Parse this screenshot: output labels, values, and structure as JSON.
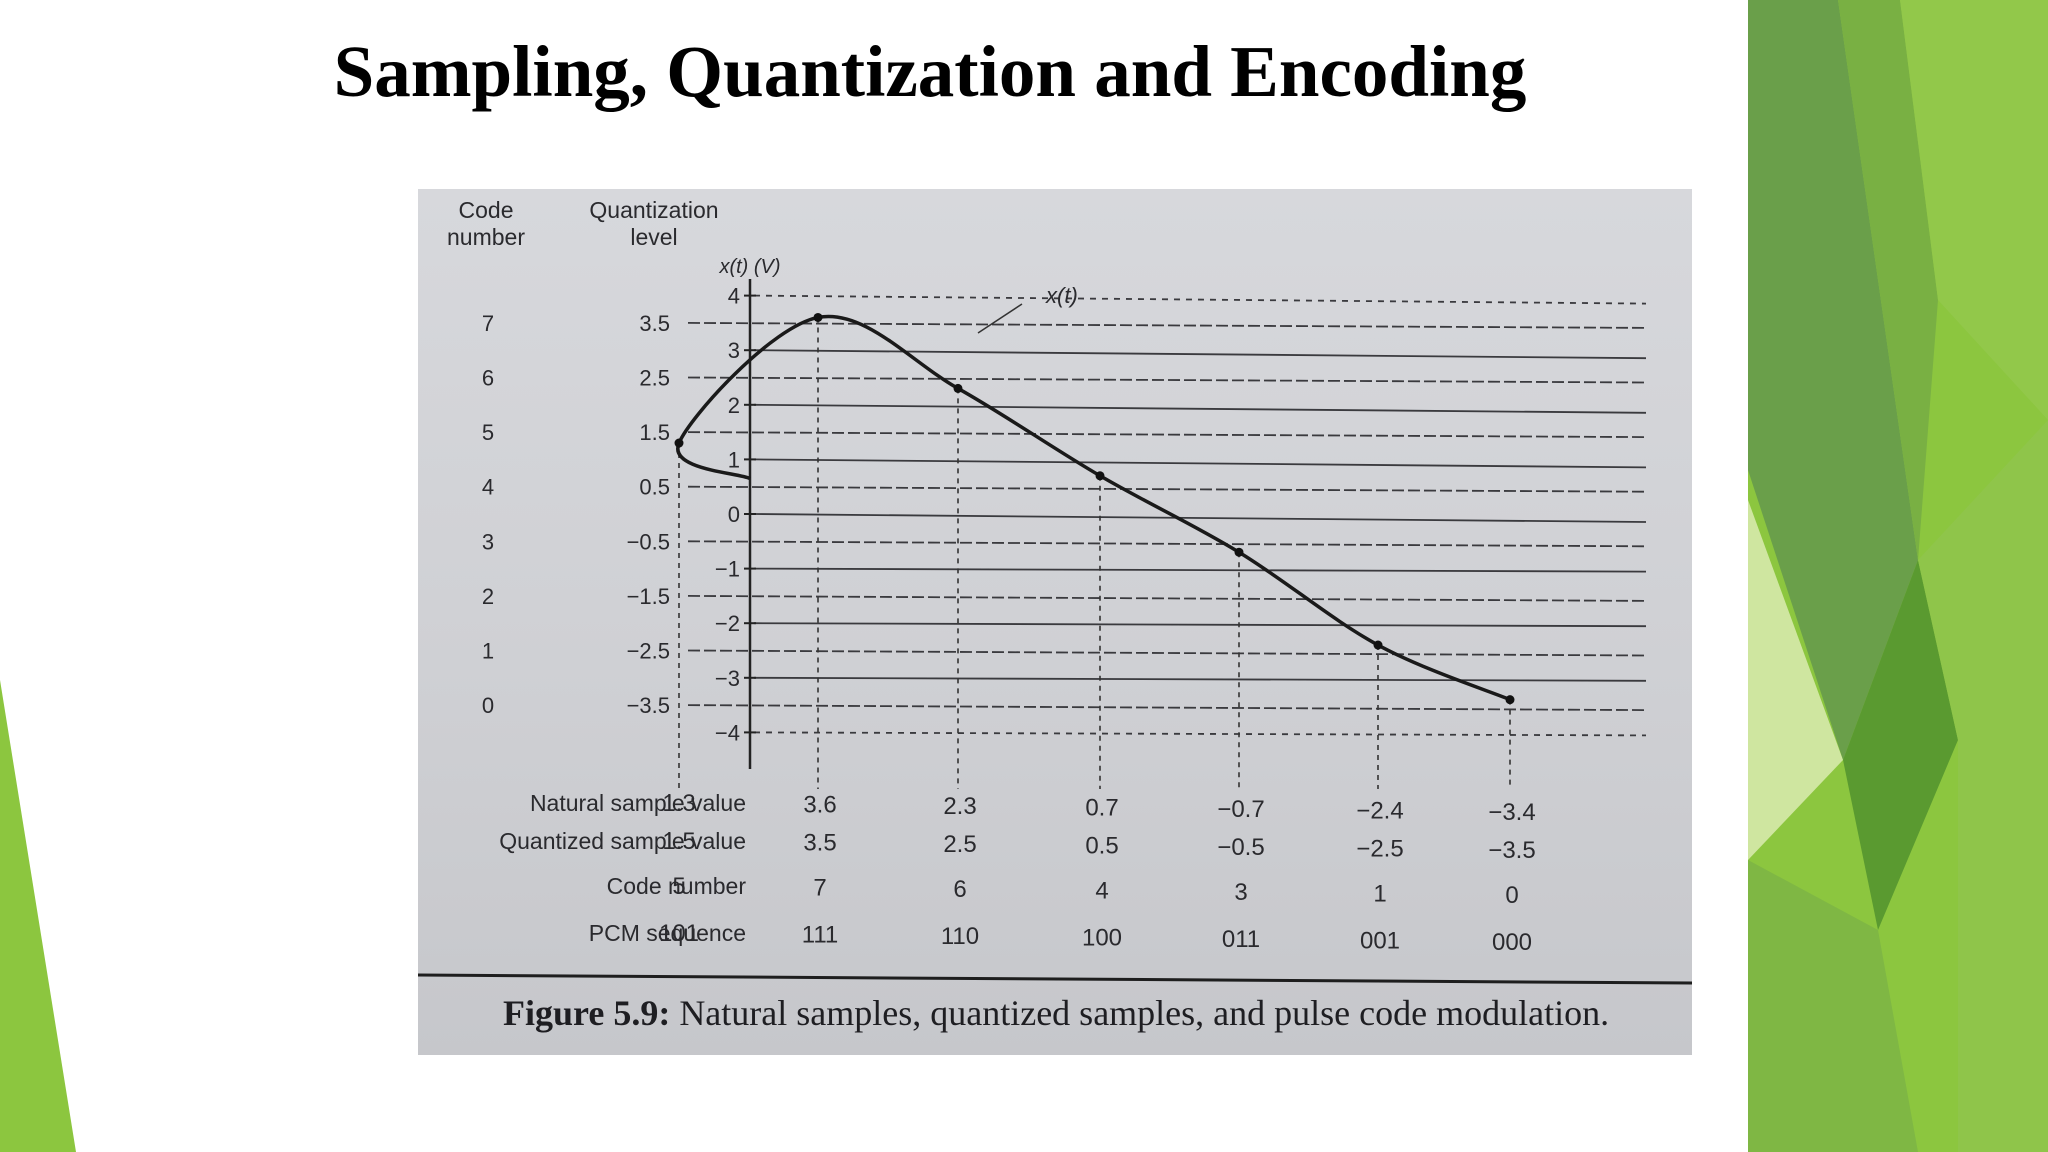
{
  "slide": {
    "title": "Sampling, Quantization and Encoding"
  },
  "figure": {
    "header_code": [
      "Code",
      "number"
    ],
    "header_level": [
      "Quantization",
      "level"
    ],
    "y_axis_label": "x(t) (V)",
    "curve_label": "x(t)",
    "code_numbers": [
      "7",
      "6",
      "5",
      "4",
      "3",
      "2",
      "1",
      "0"
    ],
    "quant_levels": [
      "3.5",
      "2.5",
      "1.5",
      "0.5",
      "−0.5",
      "−1.5",
      "−2.5",
      "−3.5"
    ],
    "quant_values": [
      3.5,
      2.5,
      1.5,
      0.5,
      -0.5,
      -1.5,
      -2.5,
      -3.5
    ],
    "y_tick_labels": [
      "4",
      "3",
      "2",
      "1",
      "0",
      "−1",
      "−2",
      "−3",
      "−4"
    ],
    "y_tick_values": [
      4,
      3,
      2,
      1,
      0,
      -1,
      -2,
      -3,
      -4
    ],
    "row_labels": {
      "natural": "Natural sample value",
      "quantized": "Quantized sample value",
      "code": "Code number",
      "pcm": "PCM sequence"
    },
    "samples": {
      "natural": [
        "1.3",
        "3.6",
        "2.3",
        "0.7",
        "−0.7",
        "−2.4",
        "−3.4"
      ],
      "natural_values": [
        1.3,
        3.6,
        2.3,
        0.7,
        -0.7,
        -2.4,
        -3.4
      ],
      "quantized": [
        "1.5",
        "3.5",
        "2.5",
        "0.5",
        "−0.5",
        "−2.5",
        "−3.5"
      ],
      "code": [
        "5",
        "7",
        "6",
        "4",
        "3",
        "1",
        "0"
      ],
      "pcm": [
        "101",
        "111",
        "110",
        "100",
        "011",
        "001",
        "000"
      ]
    },
    "caption": {
      "prefix": "Figure 5.9:",
      "text": " Natural samples, quantized samples, and pulse code modulation."
    }
  }
}
